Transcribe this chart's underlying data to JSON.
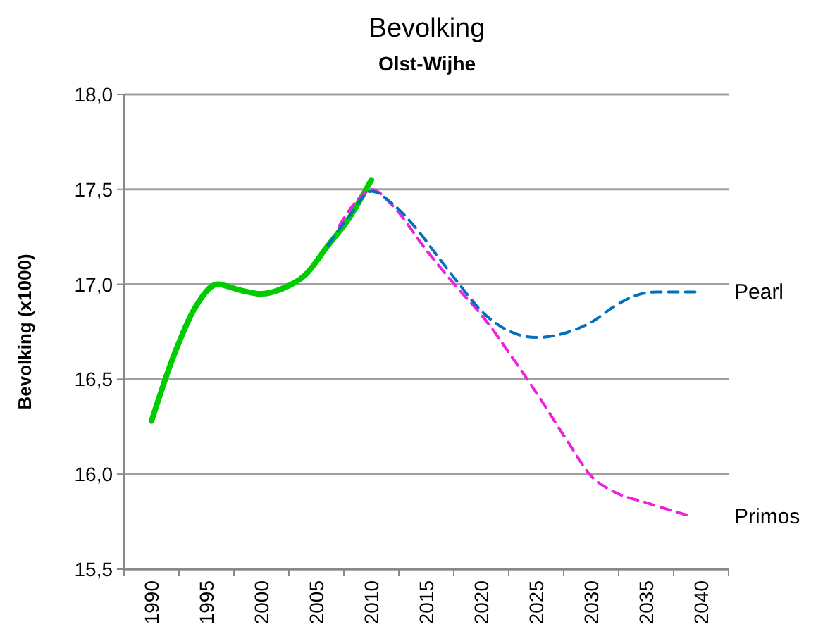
{
  "chart_data": {
    "type": "line",
    "title": "Bevolking",
    "subtitle": "Olst-Wijhe",
    "ylabel": "Bevolking (x1000)",
    "xlim": [
      1987.5,
      2042.5
    ],
    "xticks": [
      1990,
      1995,
      2000,
      2005,
      2010,
      2015,
      2020,
      2025,
      2030,
      2035,
      2040
    ],
    "ylim": [
      15.5,
      18.0
    ],
    "yticks": [
      {
        "value": 15.5,
        "label": "15,5"
      },
      {
        "value": 16,
        "label": "16,0"
      },
      {
        "value": 16.5,
        "label": "16,5"
      },
      {
        "value": 17,
        "label": "17,0"
      },
      {
        "value": 17.5,
        "label": "17,5"
      },
      {
        "value": 18,
        "label": "18,0"
      }
    ],
    "grid": "y",
    "series": [
      {
        "color": "#00cc00",
        "line_style": "solid",
        "x": [
          1990,
          1992,
          1994,
          1996,
          1998,
          2000,
          2002,
          2004,
          2006,
          2008,
          2010
        ],
        "values": [
          16.28,
          16.62,
          16.88,
          17.0,
          16.97,
          16.95,
          16.98,
          17.05,
          17.2,
          17.35,
          17.55
        ]
      },
      {
        "color": "#ee22dd",
        "line_style": "dashed",
        "name": "Primos",
        "x": [
          2007,
          2009,
          2010,
          2012,
          2015,
          2018,
          2020,
          2023,
          2025,
          2028,
          2030,
          2032,
          2035,
          2039
        ],
        "values": [
          17.3,
          17.46,
          17.5,
          17.41,
          17.18,
          16.97,
          16.84,
          16.6,
          16.43,
          16.16,
          15.99,
          15.91,
          15.85,
          15.78
        ]
      },
      {
        "color": "#0070c0",
        "line_style": "dashed",
        "name": "Pearl",
        "x": [
          2006,
          2008,
          2010,
          2012,
          2014,
          2016,
          2018,
          2020,
          2022,
          2025,
          2028,
          2030,
          2032,
          2034,
          2036,
          2040
        ],
        "values": [
          17.2,
          17.36,
          17.49,
          17.42,
          17.3,
          17.15,
          17.0,
          16.86,
          16.77,
          16.72,
          16.75,
          16.8,
          16.88,
          16.94,
          16.96,
          16.96
        ]
      }
    ]
  }
}
